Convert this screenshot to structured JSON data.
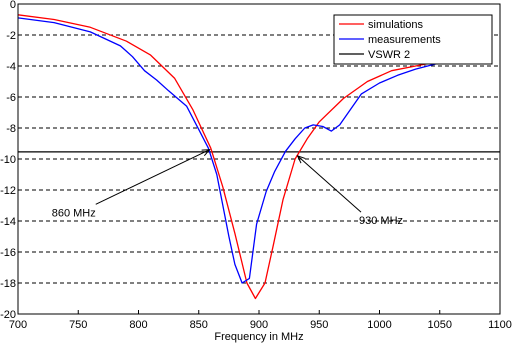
{
  "chart_data": {
    "type": "line",
    "xlabel": "Frequency in MHz",
    "ylabel": "",
    "xlim": [
      700,
      1100
    ],
    "ylim": [
      -20,
      0
    ],
    "xticks": [
      700,
      750,
      800,
      850,
      900,
      950,
      1000,
      1050,
      1100
    ],
    "yticks": [
      0,
      -2,
      -4,
      -6,
      -8,
      -10,
      -12,
      -14,
      -16,
      -18,
      -20
    ],
    "grid": "horizontal-dashed",
    "legend_position": "top-right",
    "series": [
      {
        "name": "simulations",
        "color": "#ff0000",
        "points": [
          [
            700,
            -0.7
          ],
          [
            730,
            -1.0
          ],
          [
            760,
            -1.5
          ],
          [
            790,
            -2.4
          ],
          [
            810,
            -3.3
          ],
          [
            830,
            -4.8
          ],
          [
            845,
            -6.8
          ],
          [
            860,
            -9.3
          ],
          [
            870,
            -11.8
          ],
          [
            880,
            -14.8
          ],
          [
            890,
            -18.0
          ],
          [
            897,
            -19.0
          ],
          [
            905,
            -18.0
          ],
          [
            912,
            -15.5
          ],
          [
            920,
            -12.6
          ],
          [
            930,
            -10.0
          ],
          [
            940,
            -8.7
          ],
          [
            950,
            -7.6
          ],
          [
            970,
            -6.1
          ],
          [
            990,
            -5.0
          ],
          [
            1010,
            -4.3
          ],
          [
            1030,
            -4.0
          ],
          [
            1050,
            -3.7
          ]
        ]
      },
      {
        "name": "measurements",
        "color": "#0000ff",
        "points": [
          [
            700,
            -0.9
          ],
          [
            730,
            -1.2
          ],
          [
            760,
            -1.8
          ],
          [
            785,
            -2.7
          ],
          [
            795,
            -3.4
          ],
          [
            805,
            -4.3
          ],
          [
            815,
            -4.9
          ],
          [
            825,
            -5.6
          ],
          [
            840,
            -6.6
          ],
          [
            850,
            -8.1
          ],
          [
            858,
            -9.3
          ],
          [
            865,
            -11.0
          ],
          [
            875,
            -15.0
          ],
          [
            880,
            -16.8
          ],
          [
            886,
            -18.0
          ],
          [
            892,
            -17.7
          ],
          [
            898,
            -14.2
          ],
          [
            906,
            -12.1
          ],
          [
            913,
            -10.8
          ],
          [
            922,
            -9.5
          ],
          [
            930,
            -8.7
          ],
          [
            938,
            -8.0
          ],
          [
            945,
            -7.8
          ],
          [
            953,
            -7.9
          ],
          [
            960,
            -8.2
          ],
          [
            967,
            -7.8
          ],
          [
            975,
            -6.9
          ],
          [
            985,
            -5.8
          ],
          [
            1000,
            -5.1
          ],
          [
            1015,
            -4.6
          ],
          [
            1030,
            -4.2
          ],
          [
            1050,
            -3.8
          ]
        ]
      },
      {
        "name": "VSWR 2",
        "color": "#000000",
        "points": [
          [
            700,
            -9.54
          ],
          [
            1100,
            -9.54
          ]
        ]
      }
    ],
    "annotations": [
      {
        "text": "860 MHz",
        "label_at": [
          728,
          -13.7
        ],
        "arrow_to": [
          859,
          -9.4
        ]
      },
      {
        "text": "930 MHz",
        "label_at": [
          983,
          -14.2
        ],
        "arrow_to": [
          932,
          -9.8
        ]
      }
    ]
  }
}
